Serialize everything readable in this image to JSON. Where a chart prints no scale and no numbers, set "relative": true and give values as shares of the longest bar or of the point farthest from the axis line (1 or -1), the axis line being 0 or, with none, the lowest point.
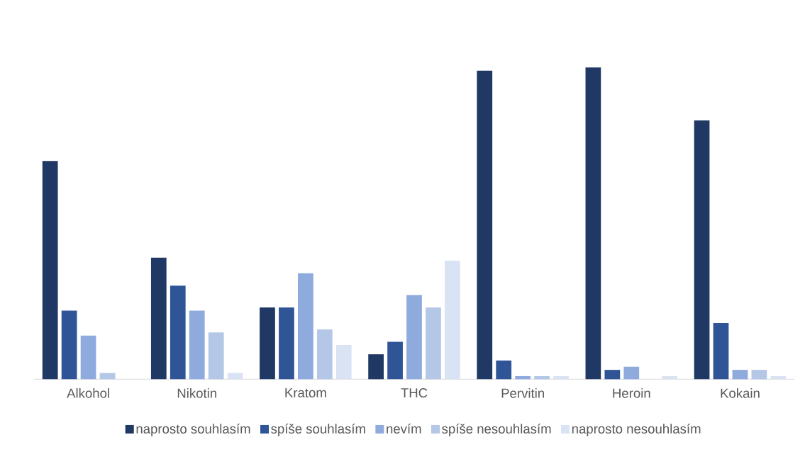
{
  "chart_data": {
    "type": "bar",
    "relative": true,
    "legend": "bottom",
    "categories": [
      "Alkohol",
      "Nikotin",
      "Kratom",
      "THC",
      "Pervitin",
      "Heroin",
      "Kokain"
    ],
    "series": [
      {
        "name": "naprosto souhlasím",
        "color": "#203864",
        "values": [
          0.7,
          0.39,
          0.23,
          0.08,
          0.99,
          1,
          0.83
        ]
      },
      {
        "name": "spíše souhlasím",
        "color": "#2f5597",
        "values": [
          0.22,
          0.3,
          0.23,
          0.12,
          0.06,
          0.03,
          0.18
        ]
      },
      {
        "name": "nevím",
        "color": "#8faadc",
        "values": [
          0.14,
          0.22,
          0.34,
          0.27,
          0.01,
          0.04,
          0.03
        ]
      },
      {
        "name": "spíše nesouhlasím",
        "color": "#b4c7e7",
        "values": [
          0.02,
          0.15,
          0.16,
          0.23,
          0.01,
          0,
          0.03
        ]
      },
      {
        "name": "naprosto nesouhlasím",
        "color": "#dae3f3",
        "values": [
          0,
          0.02,
          0.11,
          0.38,
          0.01,
          0.01,
          0.01
        ]
      }
    ]
  }
}
